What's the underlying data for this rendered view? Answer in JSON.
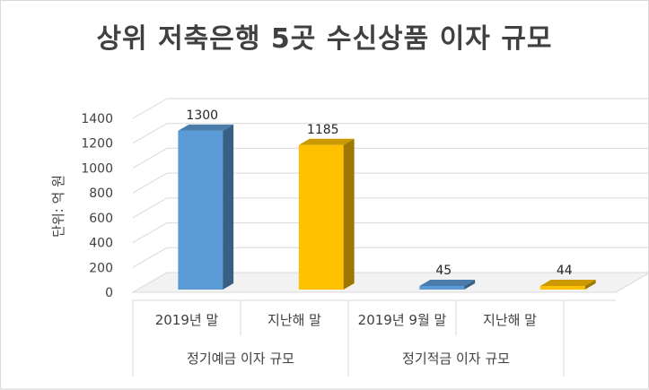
{
  "chart_data": {
    "type": "bar",
    "title": "상위 저축은행 5곳 수신상품 이자 규모",
    "ylabel": "단위: 억 원",
    "xlabel": "",
    "ylim": [
      0,
      1400
    ],
    "yticks": [
      0,
      200,
      400,
      600,
      800,
      1000,
      1200,
      1400
    ],
    "grid": true,
    "legend": "none",
    "style": "3d-column",
    "groups": [
      {
        "label": "정기예금 이자 규모",
        "categories": [
          {
            "label": "2019년 말",
            "value": 1300,
            "color": "#5b9bd5"
          },
          {
            "label": "지난해 말",
            "value": 1185,
            "color": "#ffc000"
          }
        ]
      },
      {
        "label": "정기적금 이자 규모",
        "categories": [
          {
            "label": "2019년 9월 말",
            "value": 45,
            "color": "#5b9bd5"
          },
          {
            "label": "지난해 말",
            "value": 44,
            "color": "#ffc000"
          }
        ]
      }
    ]
  }
}
